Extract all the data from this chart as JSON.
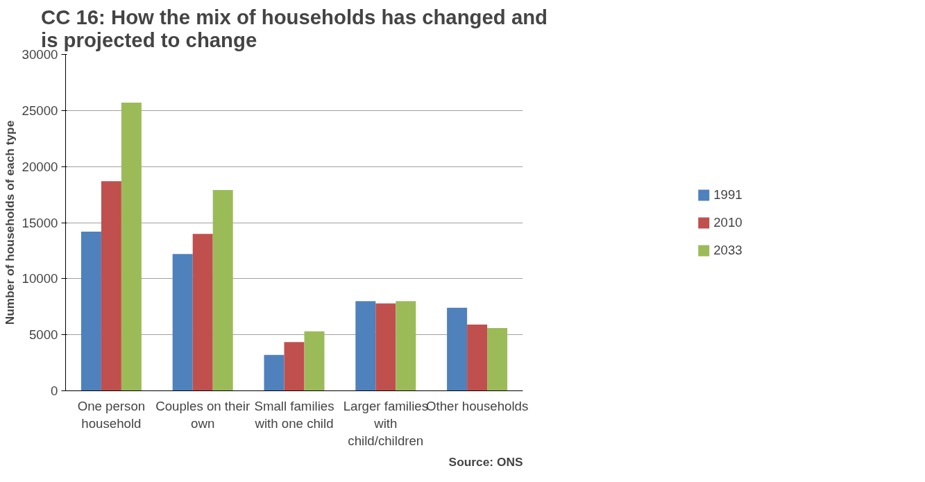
{
  "chart_data": {
    "type": "bar",
    "title": "CC 16: How the mix of households has changed and is projected to change",
    "ylabel": "Number of households of each type",
    "categories": [
      "One person household",
      "Couples on their own",
      "Small families with one child",
      "Larger families with child/children",
      "Other households"
    ],
    "series": [
      {
        "name": "1991",
        "color": "#4f81bd",
        "values": [
          14200,
          12200,
          3200,
          8000,
          7400
        ]
      },
      {
        "name": "2010",
        "color": "#c0504d",
        "values": [
          18700,
          14000,
          4350,
          7800,
          5900
        ]
      },
      {
        "name": "2033",
        "color": "#9bbb59",
        "values": [
          25700,
          17900,
          5300,
          8000,
          5600
        ]
      }
    ],
    "ylim": [
      0,
      30000
    ],
    "yticks": [
      0,
      5000,
      10000,
      15000,
      20000,
      25000,
      30000
    ],
    "grid": "y",
    "legend": "right",
    "annotations": [
      "Source: ONS"
    ]
  }
}
